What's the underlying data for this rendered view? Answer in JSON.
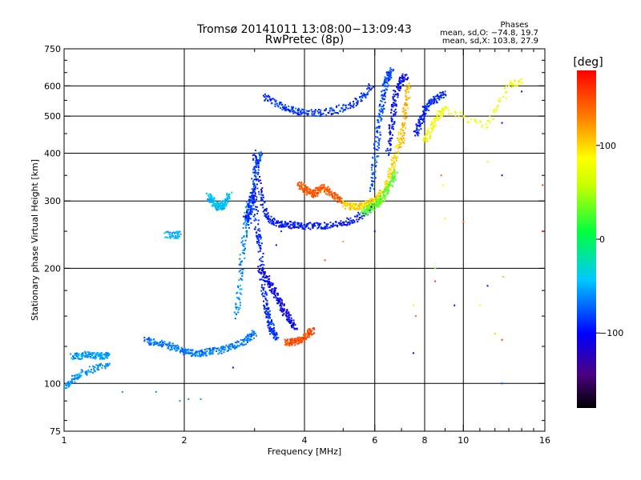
{
  "title_line1": "Tromsø 20141011 13:08:00−13:09:43",
  "title_line2": "RwPretec (8p)",
  "phases": {
    "heading": "Phases",
    "o_stats": "mean, sd,O: −74.8, 19.7",
    "x_stats": "mean, sd,X: 103.8, 27.9"
  },
  "colorbar": {
    "unit": "[deg]",
    "ticks": [
      {
        "value": 100,
        "label": "100"
      },
      {
        "value": 0,
        "label": "0"
      },
      {
        "value": -100,
        "label": "−100"
      }
    ],
    "range": [
      -180,
      180
    ]
  },
  "chart_data": {
    "type": "scatter",
    "xlabel": "Frequency [MHz]",
    "ylabel": "Stationary phase Virtual Height [km]",
    "xscale": "log",
    "yscale": "log",
    "xlim": [
      1,
      16
    ],
    "ylim": [
      75,
      750
    ],
    "grid": true,
    "xticks": [
      {
        "value": 1,
        "label": "1"
      },
      {
        "value": 2,
        "label": "2"
      },
      {
        "value": 4,
        "label": "4"
      },
      {
        "value": 6,
        "label": "6"
      },
      {
        "value": 8,
        "label": "8"
      },
      {
        "value": 10,
        "label": "10"
      },
      {
        "value": 16,
        "label": "16"
      }
    ],
    "yticks": [
      {
        "value": 75,
        "label": "75"
      },
      {
        "value": 100,
        "label": "100"
      },
      {
        "value": 200,
        "label": "200"
      },
      {
        "value": 300,
        "label": "300"
      },
      {
        "value": 400,
        "label": "400"
      },
      {
        "value": 500,
        "label": "500"
      },
      {
        "value": 600,
        "label": "600"
      },
      {
        "value": 750,
        "label": "750"
      }
    ],
    "grid_x": [
      2,
      4,
      6,
      8,
      10
    ],
    "grid_y": [
      100,
      200,
      300,
      400,
      500,
      600
    ],
    "traces": [
      {
        "phase": -60,
        "f": [
          1.0,
          1.05,
          1.1,
          1.2,
          1.3
        ],
        "h": [
          98,
          102,
          106,
          110,
          112
        ]
      },
      {
        "phase": -55,
        "f": [
          1.05,
          1.1,
          1.15,
          1.2,
          1.25,
          1.3
        ],
        "h": [
          118,
          118,
          119,
          118,
          118,
          119
        ]
      },
      {
        "phase": -65,
        "f": [
          1.6,
          1.7,
          1.8,
          1.9,
          2.0,
          2.1,
          2.2,
          2.3,
          2.45,
          2.6,
          2.75,
          2.9,
          3.0
        ],
        "h": [
          130,
          128,
          126,
          124,
          121,
          120,
          120,
          121,
          122,
          124,
          127,
          131,
          136
        ]
      },
      {
        "phase": -45,
        "f": [
          2.3,
          2.35,
          2.4,
          2.45,
          2.5,
          2.55,
          2.6
        ],
        "h": [
          310,
          300,
          292,
          288,
          292,
          300,
          312
        ]
      },
      {
        "phase": -50,
        "f": [
          1.8,
          1.9,
          1.95
        ],
        "h": [
          245,
          244,
          245
        ]
      },
      {
        "phase": -60,
        "f": [
          2.7,
          2.75,
          2.8,
          2.85,
          2.9
        ],
        "h": [
          150,
          180,
          220,
          260,
          300
        ]
      },
      {
        "phase": -75,
        "f": [
          2.9,
          2.95,
          3.0,
          3.05,
          3.1
        ],
        "h": [
          260,
          300,
          350,
          380,
          400
        ]
      },
      {
        "phase": -95,
        "f": [
          3.0,
          3.1,
          3.2,
          3.3,
          3.45,
          3.6,
          3.8,
          4.0,
          4.3,
          4.6,
          5.0,
          5.4,
          5.8,
          6.0
        ],
        "h": [
          400,
          320,
          280,
          265,
          262,
          260,
          259,
          258,
          258,
          259,
          262,
          270,
          285,
          300
        ]
      },
      {
        "phase": -90,
        "f": [
          2.85,
          2.9,
          2.95,
          3.0,
          3.05,
          3.1,
          3.15,
          3.2,
          3.25,
          3.3,
          3.35,
          3.4
        ],
        "h": [
          270,
          280,
          300,
          320,
          250,
          230,
          180,
          160,
          150,
          140,
          135,
          132
        ]
      },
      {
        "phase": -105,
        "f": [
          3.1,
          3.2,
          3.3,
          3.4,
          3.5,
          3.6,
          3.7,
          3.8
        ],
        "h": [
          200,
          190,
          180,
          170,
          160,
          152,
          145,
          140
        ]
      },
      {
        "phase": -85,
        "f": [
          3.2,
          3.4,
          3.6,
          3.8,
          4.0,
          4.4,
          4.8,
          5.2,
          5.6,
          5.9
        ],
        "h": [
          560,
          540,
          525,
          515,
          510,
          510,
          518,
          535,
          560,
          600
        ]
      },
      {
        "phase": 150,
        "f": [
          3.6,
          3.7,
          3.8,
          3.9,
          4.0,
          4.1,
          4.2
        ],
        "h": [
          128,
          128,
          129,
          130,
          132,
          135,
          138
        ]
      },
      {
        "phase": 145,
        "f": [
          3.9,
          4.0,
          4.1,
          4.2,
          4.3,
          4.45,
          4.6,
          4.8,
          5.0
        ],
        "h": [
          330,
          325,
          318,
          312,
          318,
          326,
          318,
          306,
          300
        ]
      },
      {
        "phase": 100,
        "f": [
          5.0,
          5.2,
          5.4,
          5.6,
          5.8,
          6.0,
          6.2,
          6.4,
          6.6,
          6.8,
          7.0
        ],
        "h": [
          295,
          290,
          290,
          292,
          296,
          302,
          310,
          330,
          360,
          400,
          460
        ]
      },
      {
        "phase": 30,
        "f": [
          5.6,
          5.8,
          6.0,
          6.2,
          6.4,
          6.6,
          6.8
        ],
        "h": [
          280,
          285,
          292,
          300,
          315,
          335,
          360
        ]
      },
      {
        "phase": -80,
        "f": [
          5.9,
          6.0,
          6.1,
          6.2,
          6.3,
          6.4,
          6.5,
          6.6
        ],
        "h": [
          320,
          380,
          440,
          500,
          560,
          610,
          640,
          660
        ]
      },
      {
        "phase": -100,
        "f": [
          6.5,
          6.6,
          6.7,
          6.8,
          7.0,
          7.2
        ],
        "h": [
          400,
          460,
          520,
          580,
          620,
          640
        ]
      },
      {
        "phase": 110,
        "f": [
          7.0,
          7.1,
          7.2,
          7.3
        ],
        "h": [
          420,
          480,
          540,
          610
        ]
      },
      {
        "phase": -90,
        "f": [
          7.6,
          7.8,
          8.0,
          8.3,
          8.6,
          9.0
        ],
        "h": [
          450,
          480,
          520,
          540,
          560,
          575
        ]
      },
      {
        "phase": 80,
        "f": [
          8.0,
          8.3,
          8.6,
          9.0,
          11.5,
          13.0,
          14.0
        ],
        "h": [
          430,
          460,
          500,
          520,
          470,
          600,
          620
        ]
      }
    ],
    "sparse_points": [
      {
        "f": 4.5,
        "h": 210,
        "phase": 150
      },
      {
        "f": 5.0,
        "h": 235,
        "phase": 120
      },
      {
        "f": 6.0,
        "h": 250,
        "phase": -100
      },
      {
        "f": 7.5,
        "h": 160,
        "phase": 80
      },
      {
        "f": 7.6,
        "h": 150,
        "phase": 140
      },
      {
        "f": 8.5,
        "h": 185,
        "phase": 160
      },
      {
        "f": 8.5,
        "h": 200,
        "phase": 40
      },
      {
        "f": 9.0,
        "h": 270,
        "phase": 80
      },
      {
        "f": 8.8,
        "h": 350,
        "phase": 140
      },
      {
        "f": 8.9,
        "h": 330,
        "phase": 80
      },
      {
        "f": 7.5,
        "h": 120,
        "phase": -100
      },
      {
        "f": 9.5,
        "h": 160,
        "phase": -100
      },
      {
        "f": 10.0,
        "h": 265,
        "phase": 140
      },
      {
        "f": 11.0,
        "h": 160,
        "phase": 80
      },
      {
        "f": 11.5,
        "h": 180,
        "phase": -100
      },
      {
        "f": 11.5,
        "h": 380,
        "phase": 80
      },
      {
        "f": 12.0,
        "h": 135,
        "phase": 100
      },
      {
        "f": 12.5,
        "h": 130,
        "phase": 160
      },
      {
        "f": 12.6,
        "h": 190,
        "phase": 40
      },
      {
        "f": 12.5,
        "h": 350,
        "phase": -100
      },
      {
        "f": 12.5,
        "h": 480,
        "phase": -100
      },
      {
        "f": 14.0,
        "h": 580,
        "phase": -110
      },
      {
        "f": 15.8,
        "h": 330,
        "phase": 160
      },
      {
        "f": 15.8,
        "h": 250,
        "phase": 160
      },
      {
        "f": 12.5,
        "h": 100,
        "phase": -80
      },
      {
        "f": 3.4,
        "h": 230,
        "phase": -100
      },
      {
        "f": 3.5,
        "h": 250,
        "phase": -90
      },
      {
        "f": 2.65,
        "h": 110,
        "phase": -100
      },
      {
        "f": 1.95,
        "h": 90,
        "phase": -60
      },
      {
        "f": 2.05,
        "h": 91,
        "phase": -60
      },
      {
        "f": 2.2,
        "h": 91,
        "phase": -55
      },
      {
        "f": 1.4,
        "h": 95,
        "phase": -60
      },
      {
        "f": 1.7,
        "h": 95,
        "phase": -60
      }
    ]
  }
}
